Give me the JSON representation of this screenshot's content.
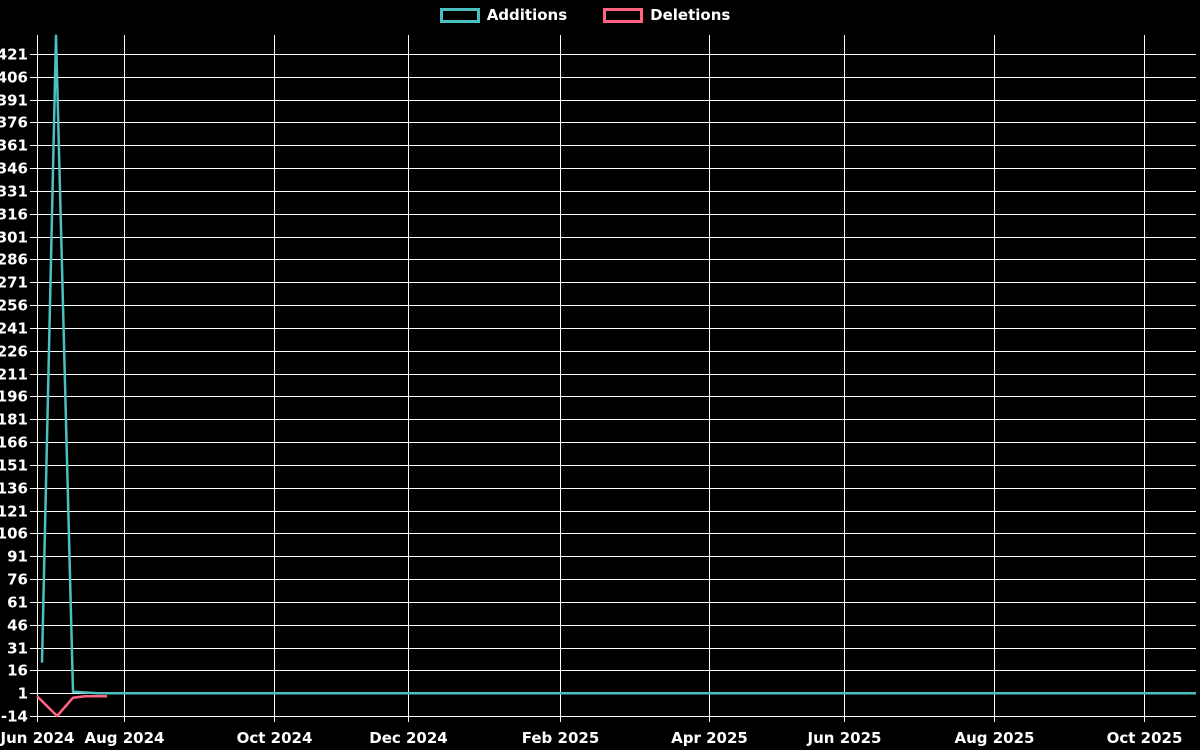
{
  "legend": {
    "items": [
      {
        "label": "Additions",
        "color": "#4bc0c0"
      },
      {
        "label": "Deletions",
        "color": "#ff6384"
      }
    ]
  },
  "chart_data": {
    "type": "line",
    "title": "",
    "background_color": "#000000",
    "grid_color": "#ffffff",
    "label_color": "#ffffff",
    "legend_position": "top-center",
    "grid": true,
    "y_min": -14,
    "y_max_tick": 421,
    "y_tick_step": 15,
    "y_ticks": [
      -14,
      1,
      16,
      31,
      46,
      61,
      76,
      91,
      106,
      121,
      136,
      151,
      166,
      181,
      196,
      211,
      226,
      241,
      256,
      271,
      286,
      301,
      316,
      331,
      346,
      361,
      376,
      391,
      406,
      421
    ],
    "x_ticks": [
      {
        "label": "Jun 2024",
        "pos": 0.0
      },
      {
        "label": "Aug 2024",
        "pos": 0.0751
      },
      {
        "label": "Oct 2024",
        "pos": 0.2045
      },
      {
        "label": "Dec 2024",
        "pos": 0.3201
      },
      {
        "label": "Feb 2025",
        "pos": 0.4513
      },
      {
        "label": "Apr 2025",
        "pos": 0.5798
      },
      {
        "label": "Jun 2025",
        "pos": 0.6963
      },
      {
        "label": "Aug 2025",
        "pos": 0.8257
      },
      {
        "label": "Oct 2025",
        "pos": 0.9551
      }
    ],
    "series": [
      {
        "name": "Deletions",
        "color": "#ff6384",
        "points": [
          [
            0.0,
            -1
          ],
          [
            0.0173,
            -14
          ],
          [
            0.0311,
            -2
          ],
          [
            0.0414,
            -1
          ],
          [
            0.0604,
            -1
          ]
        ]
      },
      {
        "name": "Additions",
        "color": "#4bc0c0",
        "points": [
          [
            0.0043,
            21
          ],
          [
            0.0164,
            433
          ],
          [
            0.0311,
            2
          ],
          [
            0.0526,
            1
          ],
          [
            1.0,
            1
          ]
        ]
      }
    ]
  }
}
